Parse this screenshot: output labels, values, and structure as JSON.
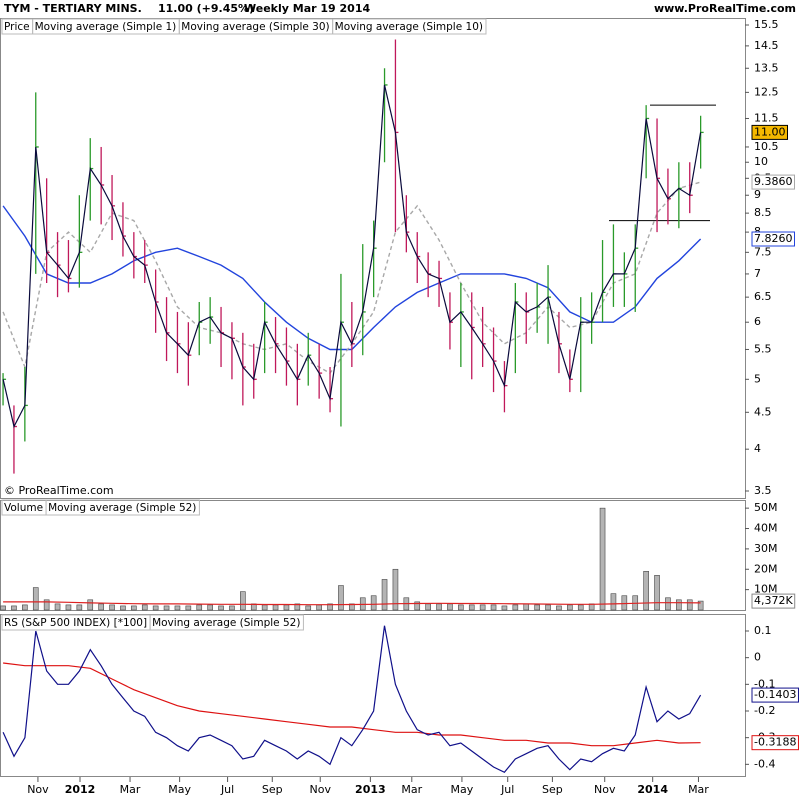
{
  "header": {
    "symbol": "TYM - TERTIARY MINS.",
    "quote": "11.00 (+9.45%)",
    "period": "Weekly  Mar 19 2014",
    "site": "www.ProRealTime.com"
  },
  "chart_data": [
    {
      "type": "ohlc",
      "legend_title": "Price",
      "copyright": "© ProRealTime.com",
      "log_scale": true,
      "ylim": [
        3.5,
        15.5
      ],
      "yticks": [
        15.5,
        14.5,
        13.5,
        12.5,
        11.5,
        10.5,
        10,
        9.5,
        9,
        8.5,
        8,
        7.5,
        7,
        6.5,
        6,
        5.5,
        5,
        4.5,
        4,
        3.5
      ],
      "xlim": [
        -0.28,
        68.07
      ],
      "xticks": [
        {
          "value": 3.2,
          "label": "Nov"
        },
        {
          "value": 7.06,
          "label": "2012"
        },
        {
          "value": 11.65,
          "label": "Mar"
        },
        {
          "value": 16.2,
          "label": "May"
        },
        {
          "value": 20.6,
          "label": "Jul"
        },
        {
          "value": 24.7,
          "label": "Sep"
        },
        {
          "value": 29.1,
          "label": "Nov"
        },
        {
          "value": 33.7,
          "label": "2013"
        },
        {
          "value": 37.5,
          "label": "Mar"
        },
        {
          "value": 42.1,
          "label": "May"
        },
        {
          "value": 46.3,
          "label": "Jul"
        },
        {
          "value": 50.4,
          "label": "Sep"
        },
        {
          "value": 55.2,
          "label": "Nov"
        },
        {
          "value": 59.6,
          "label": "2014"
        },
        {
          "value": 63.8,
          "label": "Mar"
        }
      ],
      "up_color": "#2a9a2a",
      "down_color": "#c0185a",
      "high": [
        5.1,
        4.6,
        5.2,
        12.5,
        9.5,
        8,
        7.8,
        9,
        10.8,
        10.5,
        9.6,
        8.8,
        8,
        7.8,
        7.1,
        6.5,
        6.2,
        6.0,
        6.4,
        6.5,
        6.3,
        6.0,
        5.8,
        5.6,
        6.4,
        6.1,
        5.9,
        5.6,
        5.8,
        5.6,
        5.2,
        7.0,
        6.4,
        7.7,
        8.3,
        13.5,
        14.8,
        9,
        8,
        7.5,
        7.3,
        6.6,
        6.8,
        6.6,
        6.3,
        5.9,
        5.3,
        6.8,
        6.6,
        6.8,
        7.2,
        6.2,
        5.5,
        6.5,
        6.6,
        7.8,
        8.2,
        7.5,
        8.2,
        12.0,
        11.5,
        9.8,
        10,
        10,
        11.6
      ],
      "low": [
        4.6,
        3.7,
        4.1,
        7,
        6.8,
        6.5,
        6.6,
        6.7,
        8.3,
        8.2,
        7.8,
        7.4,
        6.9,
        6.8,
        5.8,
        5.3,
        5.1,
        4.9,
        5.4,
        5.6,
        5.2,
        5.0,
        4.6,
        4.7,
        5.1,
        5.1,
        4.9,
        4.6,
        4.9,
        4.7,
        4.5,
        4.3,
        5.2,
        5.4,
        6.5,
        10,
        8,
        7.5,
        6.8,
        6.5,
        6.3,
        5.5,
        5.2,
        5.0,
        5.2,
        4.8,
        4.5,
        5.1,
        5.6,
        5.8,
        5.6,
        5.1,
        4.8,
        4.8,
        5.6,
        6.0,
        6.3,
        6.3,
        6.2,
        9.5,
        8.0,
        8.2,
        8.1,
        8.5,
        9.8
      ],
      "close": [
        5.0,
        4.3,
        4.6,
        10.5,
        7.5,
        7.2,
        6.9,
        7.5,
        9.8,
        9.3,
        8.7,
        7.9,
        7.4,
        7.2,
        6.4,
        5.8,
        5.6,
        5.4,
        6.0,
        6.1,
        5.8,
        5.7,
        5.2,
        5.0,
        6.0,
        5.6,
        5.3,
        5.0,
        5.4,
        5.1,
        4.7,
        6.0,
        5.6,
        6.2,
        7.6,
        12.8,
        11.0,
        8.0,
        7.4,
        7.0,
        6.9,
        6.0,
        6.2,
        5.9,
        5.6,
        5.3,
        4.9,
        6.4,
        6.2,
        6.3,
        6.5,
        5.6,
        5.0,
        6.0,
        6.0,
        6.6,
        7.0,
        7.0,
        7.6,
        11.5,
        9.5,
        8.9,
        9.2,
        9.0,
        11.0
      ],
      "close_name": "Moving average (Simple 1)",
      "close_color": "#0a0a3c",
      "close_last_label": "11.00",
      "levels": [
        12,
        8.3
      ],
      "series": [
        {
          "name": "Moving average (Simple 30)",
          "color": "#2244dd",
          "dashed": false,
          "last_label": "7.8260",
          "values": [
            8.7,
            7.9,
            7.0,
            6.8,
            6.8,
            7.0,
            7.3,
            7.5,
            7.6,
            7.4,
            7.2,
            6.9,
            6.4,
            6.0,
            5.7,
            5.5,
            5.5,
            5.9,
            6.3,
            6.6,
            6.8,
            7.0,
            7.0,
            7.0,
            6.9,
            6.7,
            6.2,
            6.0,
            6.0,
            6.3,
            6.9,
            7.3,
            7.826
          ]
        },
        {
          "name": "Moving average (Simple 10)",
          "color": "#a8a8a8",
          "dashed": true,
          "last_label": "9.3860",
          "values": [
            6.2,
            5.2,
            7.5,
            8.0,
            7.5,
            8.5,
            8.3,
            7.3,
            6.3,
            5.9,
            5.8,
            5.6,
            5.5,
            5.6,
            5.3,
            5.1,
            5.6,
            6.2,
            8.0,
            8.7,
            7.8,
            6.8,
            6.0,
            5.6,
            5.8,
            6.3,
            5.9,
            6.0,
            6.8,
            7.0,
            8.5,
            9.2,
            9.386
          ]
        }
      ]
    },
    {
      "type": "bar",
      "legend_title": "Volume",
      "color": "#b4b4b4",
      "last_label": "4,372K",
      "ylim": [
        0,
        54
      ],
      "yticks": [
        {
          "value": 10,
          "label": "10M"
        },
        {
          "value": 20,
          "label": "20M"
        },
        {
          "value": 30,
          "label": "30M"
        },
        {
          "value": 40,
          "label": "40M"
        },
        {
          "value": 50,
          "label": "50M"
        }
      ],
      "values": [
        2,
        2,
        2.5,
        11,
        5,
        3,
        2.5,
        2.5,
        5,
        3,
        2.5,
        2,
        2,
        2.5,
        2,
        2,
        2,
        2,
        2.5,
        2.5,
        2,
        2,
        9,
        3,
        2.5,
        2.5,
        2.5,
        3,
        2,
        2.5,
        3,
        12,
        3,
        6,
        7,
        15,
        20,
        6,
        4,
        3,
        3,
        3,
        2.5,
        2.5,
        2.5,
        2.5,
        2,
        2.5,
        3,
        2.5,
        2.5,
        2,
        2.5,
        2.5,
        3,
        50,
        8,
        7,
        7,
        19,
        17,
        6,
        5,
        5,
        4.372
      ],
      "series": [
        {
          "name": "Moving average (Simple 52)",
          "color": "#dd2222",
          "values": [
            4,
            4,
            4,
            3.8,
            3.5,
            3.3,
            3.1,
            3,
            3,
            2.9,
            2.8,
            2.8,
            2.7,
            2.7,
            2.6,
            2.6,
            2.7,
            2.8,
            3.1,
            3.2,
            3.3,
            3.2,
            3.2,
            3.1,
            3.0,
            2.9,
            2.8,
            2.8,
            3.0,
            3.3,
            3.6,
            3.6,
            3.5
          ]
        }
      ]
    },
    {
      "type": "line",
      "legend_title": "RS (S&P 500 INDEX) [*100]",
      "color": "#10108a",
      "last_label": "-0.1403",
      "ylim": [
        -0.44,
        0.16
      ],
      "yticks": [
        0.1,
        0,
        -0.1,
        -0.2,
        -0.3,
        -0.4
      ],
      "values": [
        -0.28,
        -0.37,
        -0.3,
        0.1,
        -0.05,
        -0.1,
        -0.1,
        -0.05,
        0.03,
        -0.03,
        -0.1,
        -0.15,
        -0.2,
        -0.22,
        -0.28,
        -0.3,
        -0.33,
        -0.35,
        -0.3,
        -0.29,
        -0.31,
        -0.33,
        -0.38,
        -0.37,
        -0.31,
        -0.33,
        -0.35,
        -0.38,
        -0.35,
        -0.37,
        -0.4,
        -0.3,
        -0.33,
        -0.27,
        -0.2,
        0.12,
        -0.1,
        -0.2,
        -0.27,
        -0.29,
        -0.28,
        -0.33,
        -0.32,
        -0.35,
        -0.38,
        -0.41,
        -0.43,
        -0.38,
        -0.36,
        -0.34,
        -0.33,
        -0.38,
        -0.42,
        -0.38,
        -0.39,
        -0.36,
        -0.34,
        -0.35,
        -0.29,
        -0.11,
        -0.24,
        -0.2,
        -0.23,
        -0.21,
        -0.1403
      ],
      "series": [
        {
          "name": "Moving average (Simple 52)",
          "color": "#dd1111",
          "last_label": "-0.3188",
          "values": [
            -0.02,
            -0.03,
            -0.03,
            -0.03,
            -0.04,
            -0.08,
            -0.12,
            -0.15,
            -0.18,
            -0.2,
            -0.21,
            -0.22,
            -0.23,
            -0.24,
            -0.25,
            -0.26,
            -0.26,
            -0.27,
            -0.28,
            -0.28,
            -0.29,
            -0.29,
            -0.3,
            -0.31,
            -0.31,
            -0.32,
            -0.32,
            -0.33,
            -0.33,
            -0.32,
            -0.31,
            -0.32,
            -0.3188
          ]
        }
      ]
    }
  ]
}
